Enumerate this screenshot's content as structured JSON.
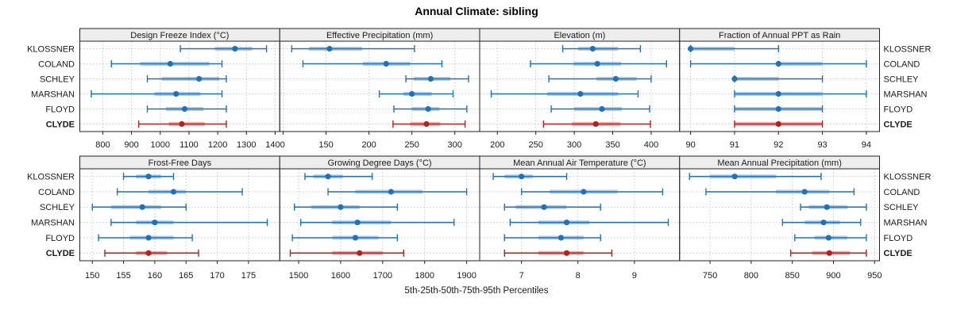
{
  "title": "Annual Climate: sibling",
  "caption": "5th-25th-50th-75th-95th Percentiles",
  "stations": [
    "KLOSSNER",
    "COLAND",
    "SCHLEY",
    "MARSHAN",
    "FLOYD",
    "CLYDE"
  ],
  "highlight_station": "CLYDE",
  "colors": {
    "series": "#2171b5",
    "highlight": "#b22222",
    "band_opacity": 0.35,
    "strip_bg": "#ededed",
    "grid_line": "#c9c9c9",
    "border": "#222222",
    "text": "#1a1a1a"
  },
  "chart_data": {
    "type": "dotplot",
    "layout": "2-row by 4-column lattice; each panel shows 5th-25th-50th-75th-95th percentile lines per station; station labels on both left and right sides; CLYDE highlighted red/bold",
    "percentile_labels": [
      "5th",
      "25th",
      "50th",
      "75th",
      "95th"
    ],
    "stations": [
      "KLOSSNER",
      "COLAND",
      "SCHLEY",
      "MARSHAN",
      "FLOYD",
      "CLYDE"
    ],
    "panels": [
      {
        "title": "Design Freeze Index (°C)",
        "grid_row": 0,
        "col": 0,
        "xlim": [
          720,
          1416
        ],
        "ticks": [
          800,
          900,
          1000,
          1100,
          1200,
          1300,
          1400
        ],
        "tick_labels": [
          "800",
          "900",
          "1000",
          "1100",
          "1200",
          "1300",
          "1400"
        ],
        "values": {
          "KLOSSNER": [
            1070,
            1190,
            1260,
            1320,
            1370
          ],
          "COLAND": [
            830,
            930,
            1035,
            1170,
            1215
          ],
          "SCHLEY": [
            955,
            1005,
            1135,
            1205,
            1230
          ],
          "MARSHAN": [
            760,
            980,
            1055,
            1140,
            1215
          ],
          "FLOYD": [
            955,
            1020,
            1085,
            1150,
            1230
          ],
          "CLYDE": [
            925,
            1030,
            1075,
            1155,
            1230
          ]
        }
      },
      {
        "title": "Effective Precipitation (mm)",
        "grid_row": 0,
        "col": 1,
        "xlim": [
          96,
          329
        ],
        "ticks": [
          100,
          150,
          200,
          250,
          300
        ],
        "tick_labels": [
          "",
          "150",
          "200",
          "250",
          "300"
        ],
        "values": {
          "KLOSSNER": [
            110,
            130,
            154,
            192,
            253
          ],
          "COLAND": [
            123,
            193,
            220,
            248,
            285
          ],
          "SCHLEY": [
            243,
            252,
            272,
            295,
            316
          ],
          "MARSHAN": [
            212,
            240,
            250,
            273,
            298
          ],
          "FLOYD": [
            229,
            250,
            269,
            282,
            314
          ],
          "CLYDE": [
            228,
            248,
            267,
            283,
            312
          ]
        }
      },
      {
        "title": "Elevation (m)",
        "grid_row": 0,
        "col": 2,
        "xlim": [
          177,
          437
        ],
        "ticks": [
          200,
          250,
          300,
          350,
          400
        ],
        "tick_labels": [
          "200",
          "250",
          "300",
          "350",
          "400"
        ],
        "values": {
          "KLOSSNER": [
            285,
            305,
            324,
            357,
            386
          ],
          "COLAND": [
            243,
            299,
            330,
            361,
            420
          ],
          "SCHLEY": [
            267,
            329,
            354,
            381,
            400
          ],
          "MARSHAN": [
            192,
            265,
            308,
            357,
            383
          ],
          "FLOYD": [
            270,
            300,
            336,
            362,
            398
          ],
          "CLYDE": [
            260,
            297,
            328,
            360,
            399
          ]
        }
      },
      {
        "title": "Fraction of Annual PPT as Rain",
        "grid_row": 0,
        "col": 3,
        "xlim": [
          89.75,
          94.3
        ],
        "ticks": [
          90,
          91,
          92,
          93,
          94
        ],
        "tick_labels": [
          "90",
          "91",
          "92",
          "93",
          "94"
        ],
        "values": {
          "KLOSSNER": [
            90,
            90,
            90,
            91,
            92
          ],
          "COLAND": [
            90,
            92,
            92,
            93,
            94
          ],
          "SCHLEY": [
            91,
            91,
            91,
            92,
            93
          ],
          "MARSHAN": [
            91,
            91,
            92,
            93,
            94
          ],
          "FLOYD": [
            91,
            91,
            92,
            93,
            93
          ],
          "CLYDE": [
            91,
            91,
            92,
            93,
            93
          ]
        }
      },
      {
        "title": "Frost-Free Days",
        "grid_row": 1,
        "col": 0,
        "xlim": [
          148,
          180
        ],
        "ticks": [
          150,
          155,
          160,
          165,
          170,
          175
        ],
        "tick_labels": [
          "150",
          "155",
          "160",
          "165",
          "170",
          "175"
        ],
        "values": {
          "KLOSSNER": [
            155,
            157,
            159,
            161,
            163
          ],
          "COLAND": [
            154,
            159,
            163,
            165,
            174
          ],
          "SCHLEY": [
            150,
            153,
            158,
            161,
            165
          ],
          "MARSHAN": [
            153,
            157,
            160,
            163,
            178
          ],
          "FLOYD": [
            151,
            156,
            159,
            163,
            166
          ],
          "CLYDE": [
            152,
            157,
            159,
            162,
            167
          ]
        }
      },
      {
        "title": "Growing Degree Days (°C)",
        "grid_row": 1,
        "col": 1,
        "xlim": [
          1455,
          1931
        ],
        "ticks": [
          1500,
          1600,
          1700,
          1800,
          1900
        ],
        "tick_labels": [
          "1500",
          "1600",
          "1700",
          "1800",
          "1900"
        ],
        "values": {
          "KLOSSNER": [
            1515,
            1535,
            1570,
            1605,
            1675
          ],
          "COLAND": [
            1570,
            1635,
            1720,
            1795,
            1900
          ],
          "SCHLEY": [
            1490,
            1530,
            1600,
            1645,
            1735
          ],
          "MARSHAN": [
            1505,
            1580,
            1640,
            1720,
            1870
          ],
          "FLOYD": [
            1485,
            1580,
            1635,
            1690,
            1735
          ],
          "CLYDE": [
            1480,
            1580,
            1645,
            1700,
            1750
          ]
        }
      },
      {
        "title": "Mean Annual Air Temperature (°C)",
        "grid_row": 1,
        "col": 2,
        "xlim": [
          6.26,
          9.8
        ],
        "ticks": [
          7,
          8,
          9
        ],
        "tick_labels": [
          "7",
          "8",
          "9"
        ],
        "values": {
          "KLOSSNER": [
            6.5,
            6.7,
            7.0,
            7.2,
            7.8
          ],
          "COLAND": [
            7.0,
            7.5,
            8.1,
            8.7,
            9.5
          ],
          "SCHLEY": [
            6.7,
            6.9,
            7.4,
            7.8,
            8.4
          ],
          "MARSHAN": [
            6.8,
            7.3,
            7.8,
            8.2,
            9.6
          ],
          "FLOYD": [
            6.7,
            7.3,
            7.7,
            8.1,
            8.4
          ],
          "CLYDE": [
            6.7,
            7.3,
            7.8,
            8.1,
            8.6
          ]
        }
      },
      {
        "title": "Mean Annual Precipitation (mm)",
        "grid_row": 1,
        "col": 3,
        "xlim": [
          713,
          956
        ],
        "ticks": [
          750,
          800,
          850,
          900,
          950
        ],
        "tick_labels": [
          "750",
          "800",
          "850",
          "900",
          "950"
        ],
        "values": {
          "KLOSSNER": [
            725,
            750,
            780,
            830,
            885
          ],
          "COLAND": [
            745,
            830,
            865,
            895,
            925
          ],
          "SCHLEY": [
            860,
            870,
            892,
            917,
            940
          ],
          "MARSHAN": [
            838,
            865,
            888,
            908,
            933
          ],
          "FLOYD": [
            853,
            877,
            894,
            917,
            940
          ],
          "CLYDE": [
            848,
            874,
            895,
            920,
            940
          ]
        }
      }
    ]
  }
}
